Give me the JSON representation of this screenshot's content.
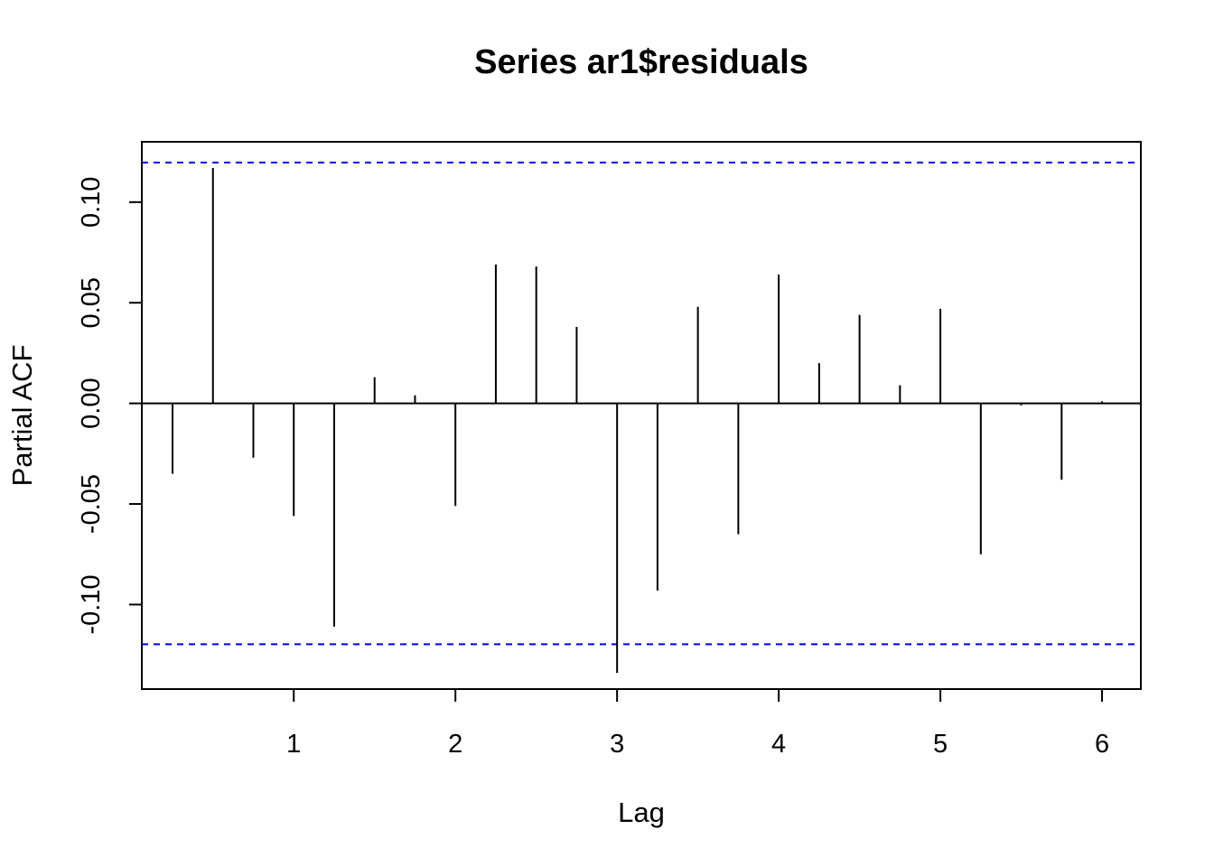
{
  "chart_data": {
    "type": "bar",
    "title": "Series  ar1$residuals",
    "xlabel": "Lag",
    "ylabel": "Partial ACF",
    "xlim": [
      0.06,
      6.24
    ],
    "ylim": [
      -0.142,
      0.13
    ],
    "x_ticks": [
      1,
      2,
      3,
      4,
      5,
      6
    ],
    "x_tick_labels": [
      "1",
      "2",
      "3",
      "4",
      "5",
      "6"
    ],
    "y_ticks": [
      -0.1,
      -0.05,
      0.0,
      0.05,
      0.1
    ],
    "y_tick_labels": [
      "-0.10",
      "-0.05",
      "0.00",
      "0.05",
      "0.10"
    ],
    "grid": false,
    "x": [
      0.25,
      0.5,
      0.75,
      1.0,
      1.25,
      1.5,
      1.75,
      2.0,
      2.25,
      2.5,
      2.75,
      3.0,
      3.25,
      3.5,
      3.75,
      4.0,
      4.25,
      4.5,
      4.75,
      5.0,
      5.25,
      5.5,
      5.75,
      6.0
    ],
    "values": [
      -0.035,
      0.117,
      -0.027,
      -0.056,
      -0.111,
      0.013,
      0.004,
      -0.051,
      0.069,
      0.068,
      0.038,
      -0.134,
      -0.093,
      0.048,
      -0.065,
      0.064,
      0.02,
      0.044,
      0.009,
      0.047,
      -0.075,
      -0.001,
      -0.038,
      0.001
    ],
    "confidence_limits": [
      0.1197,
      -0.1197
    ],
    "colors": {
      "bars": "#000000",
      "confidence_lines": "#0000ee",
      "zero_line": "#000000",
      "frame": "#000000"
    }
  }
}
